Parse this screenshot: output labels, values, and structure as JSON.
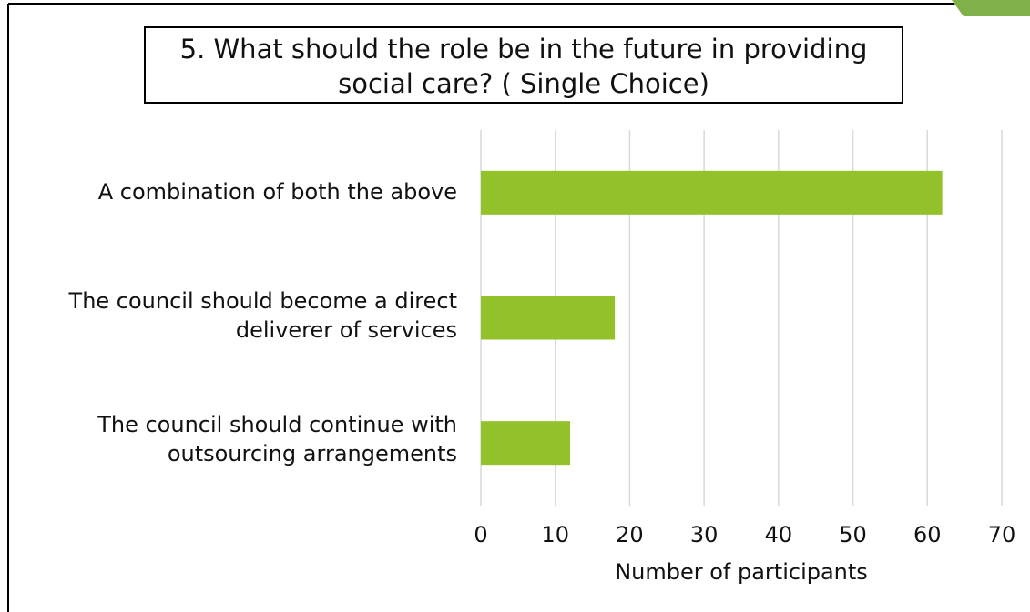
{
  "chart_data": {
    "type": "bar",
    "orientation": "horizontal",
    "title": "5. What should the role be in the future in providing social care? ( Single Choice)",
    "title_lines": [
      "5. What should the role be in the future in providing",
      "social care? ( Single Choice)"
    ],
    "categories": [
      "A combination of both the above",
      "The council should become a direct deliverer of services",
      "The council should continue with outsourcing arrangements"
    ],
    "category_lines": [
      [
        "A combination of both the above"
      ],
      [
        "The council should become a direct",
        "deliverer of services"
      ],
      [
        "The council should continue with",
        "outsourcing arrangements"
      ]
    ],
    "values": [
      62,
      18,
      12
    ],
    "xlabel": "Number of participants",
    "ylabel": "",
    "xlim": [
      0,
      70
    ],
    "ticks": [
      "0",
      "10",
      "20",
      "30",
      "40",
      "50",
      "60",
      "70"
    ],
    "grid": true,
    "bar_color": "#92c12a",
    "grid_color": "#d9d9d9",
    "legend": "none"
  },
  "accent_color": "#92c12a"
}
